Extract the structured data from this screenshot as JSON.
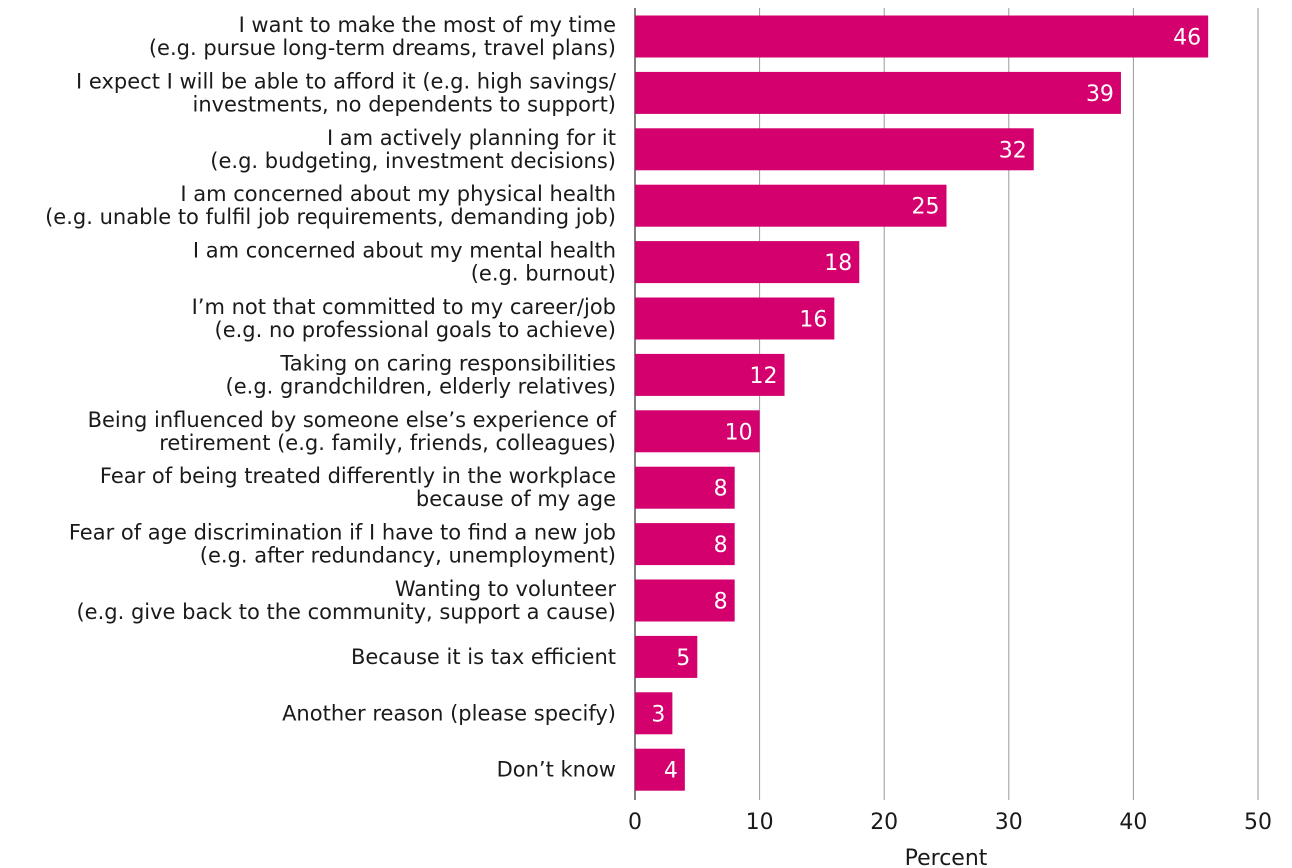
{
  "chart_data": {
    "type": "bar",
    "orientation": "horizontal",
    "categories": [
      [
        "I want to make the most of my time",
        "(e.g. pursue long-term dreams, travel plans)"
      ],
      [
        "I expect I will be able to afford it (e.g. high savings/",
        "investments, no dependents to support)"
      ],
      [
        "I am actively planning for it",
        "(e.g. budgeting, investment decisions)"
      ],
      [
        "I am concerned about my physical health",
        "(e.g. unable to fulfil job requirements, demanding job)"
      ],
      [
        "I am concerned about my mental health",
        "(e.g. burnout)"
      ],
      [
        "I’m not that committed to my career/job",
        "(e.g. no professional goals to achieve)"
      ],
      [
        "Taking on caring responsibilities",
        "(e.g. grandchildren, elderly relatives)"
      ],
      [
        "Being influenced by someone else’s experience of",
        "retirement (e.g. family, friends, colleagues)"
      ],
      [
        "Fear of being treated differently in the workplace",
        "because of my age"
      ],
      [
        "Fear of age discrimination if I have to find a new job",
        "(e.g. after redundancy, unemployment)"
      ],
      [
        "Wanting to volunteer",
        "(e.g. give back to the community, support a cause)"
      ],
      [
        "Because it is tax efficient"
      ],
      [
        "Another reason (please specify)"
      ],
      [
        "Don’t know"
      ]
    ],
    "values": [
      46,
      39,
      32,
      25,
      18,
      16,
      12,
      10,
      8,
      8,
      8,
      5,
      3,
      4
    ],
    "xlabel": "Percent",
    "xlim": [
      0,
      50
    ],
    "xticks": [
      0,
      10,
      20,
      30,
      40,
      50
    ],
    "grid": "vertical",
    "bar_color": "#d4006e",
    "grid_color": "#9a9a9a"
  }
}
